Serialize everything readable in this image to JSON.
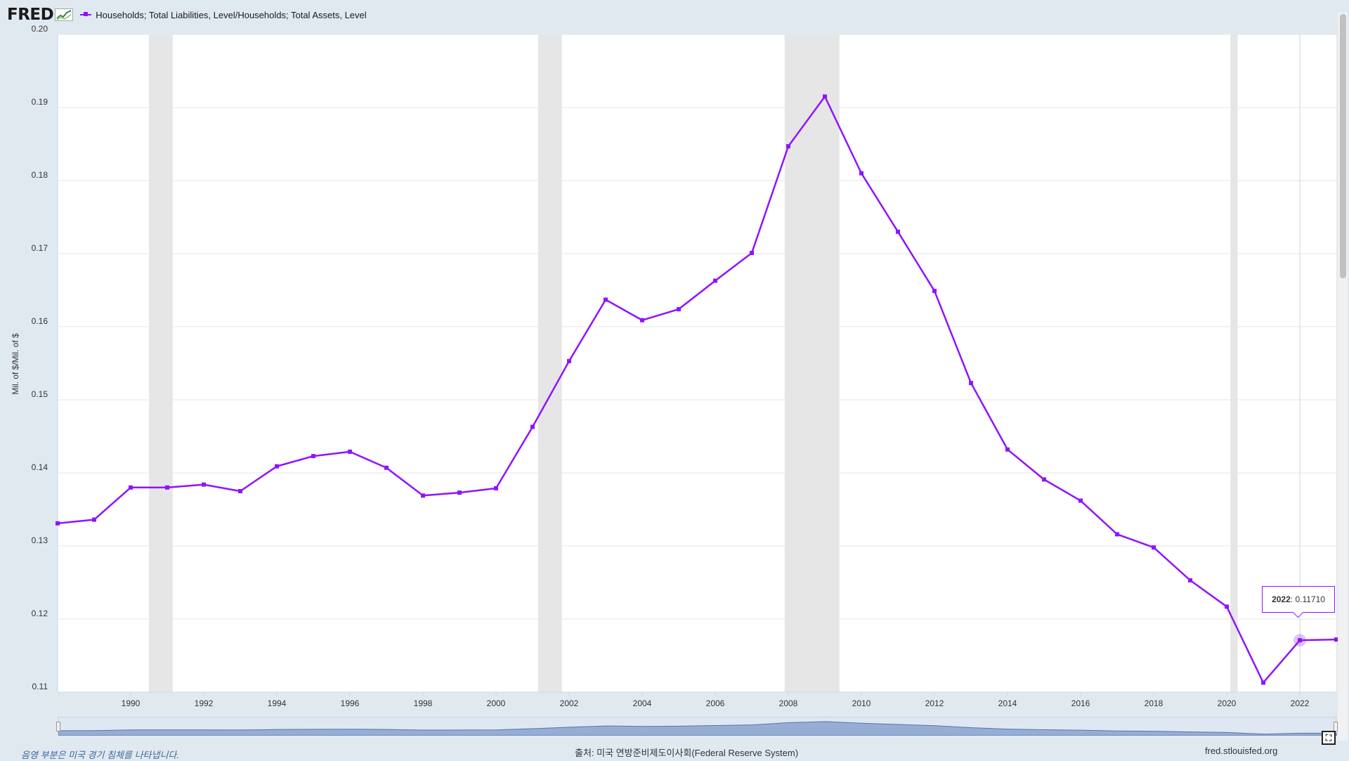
{
  "header": {
    "logo_text": "FRED",
    "logo_icon": "chart-line-icon"
  },
  "legend": {
    "label": "Households; Total Liabilities, Level/Households; Total Assets, Level"
  },
  "colors": {
    "series": "#9013fe",
    "recession": "#e6e6e6",
    "plot_bg": "#ffffff",
    "page_bg": "#e1e9f0",
    "navigator": "#8ba3cf"
  },
  "tooltip": {
    "year": "2022",
    "value": "0.11710"
  },
  "footer": {
    "note": "음영 부분은 미국 경기 침체를 나타냅니다.",
    "source": "출처: 미국 연방준비제도이사회(Federal Reserve System)",
    "url": "fred.stlouisfed.org"
  },
  "chart_data": {
    "type": "line",
    "ylabel": "Mil. of $/Mil. of $",
    "ylim": [
      0.11,
      0.2
    ],
    "yticks": [
      "0.11",
      "0.12",
      "0.13",
      "0.14",
      "0.15",
      "0.16",
      "0.17",
      "0.18",
      "0.19",
      "0.20"
    ],
    "xlim": [
      1988,
      2023
    ],
    "xticks": [
      "1990",
      "1992",
      "1994",
      "1996",
      "1998",
      "2000",
      "2002",
      "2004",
      "2006",
      "2008",
      "2010",
      "2012",
      "2014",
      "2016",
      "2018",
      "2020",
      "2022"
    ],
    "grid": true,
    "legend_position": "top-left",
    "recessions": [
      [
        1990.5,
        1991.15
      ],
      [
        2001.15,
        2001.8
      ],
      [
        2007.9,
        2009.4
      ],
      [
        2020.1,
        2020.3
      ]
    ],
    "series": [
      {
        "name": "Households; Total Liabilities, Level/Households; Total Assets, Level",
        "x": [
          1988,
          1989,
          1990,
          1991,
          1992,
          1993,
          1994,
          1995,
          1996,
          1997,
          1998,
          1999,
          2000,
          2001,
          2002,
          2003,
          2004,
          2005,
          2006,
          2007,
          2008,
          2009,
          2010,
          2011,
          2012,
          2013,
          2014,
          2015,
          2016,
          2017,
          2018,
          2019,
          2020,
          2021,
          2022,
          2023
        ],
        "y": [
          0.1331,
          0.1336,
          0.138,
          0.138,
          0.1384,
          0.1375,
          0.1409,
          0.1423,
          0.1429,
          0.1407,
          0.1369,
          0.1373,
          0.1379,
          0.1463,
          0.1553,
          0.1637,
          0.1609,
          0.1624,
          0.1663,
          0.1701,
          0.1847,
          0.1915,
          0.181,
          0.173,
          0.1649,
          0.1523,
          0.1432,
          0.1391,
          0.1362,
          0.1316,
          0.1298,
          0.1253,
          0.1217,
          0.1113,
          0.1171,
          0.1172
        ]
      }
    ]
  }
}
